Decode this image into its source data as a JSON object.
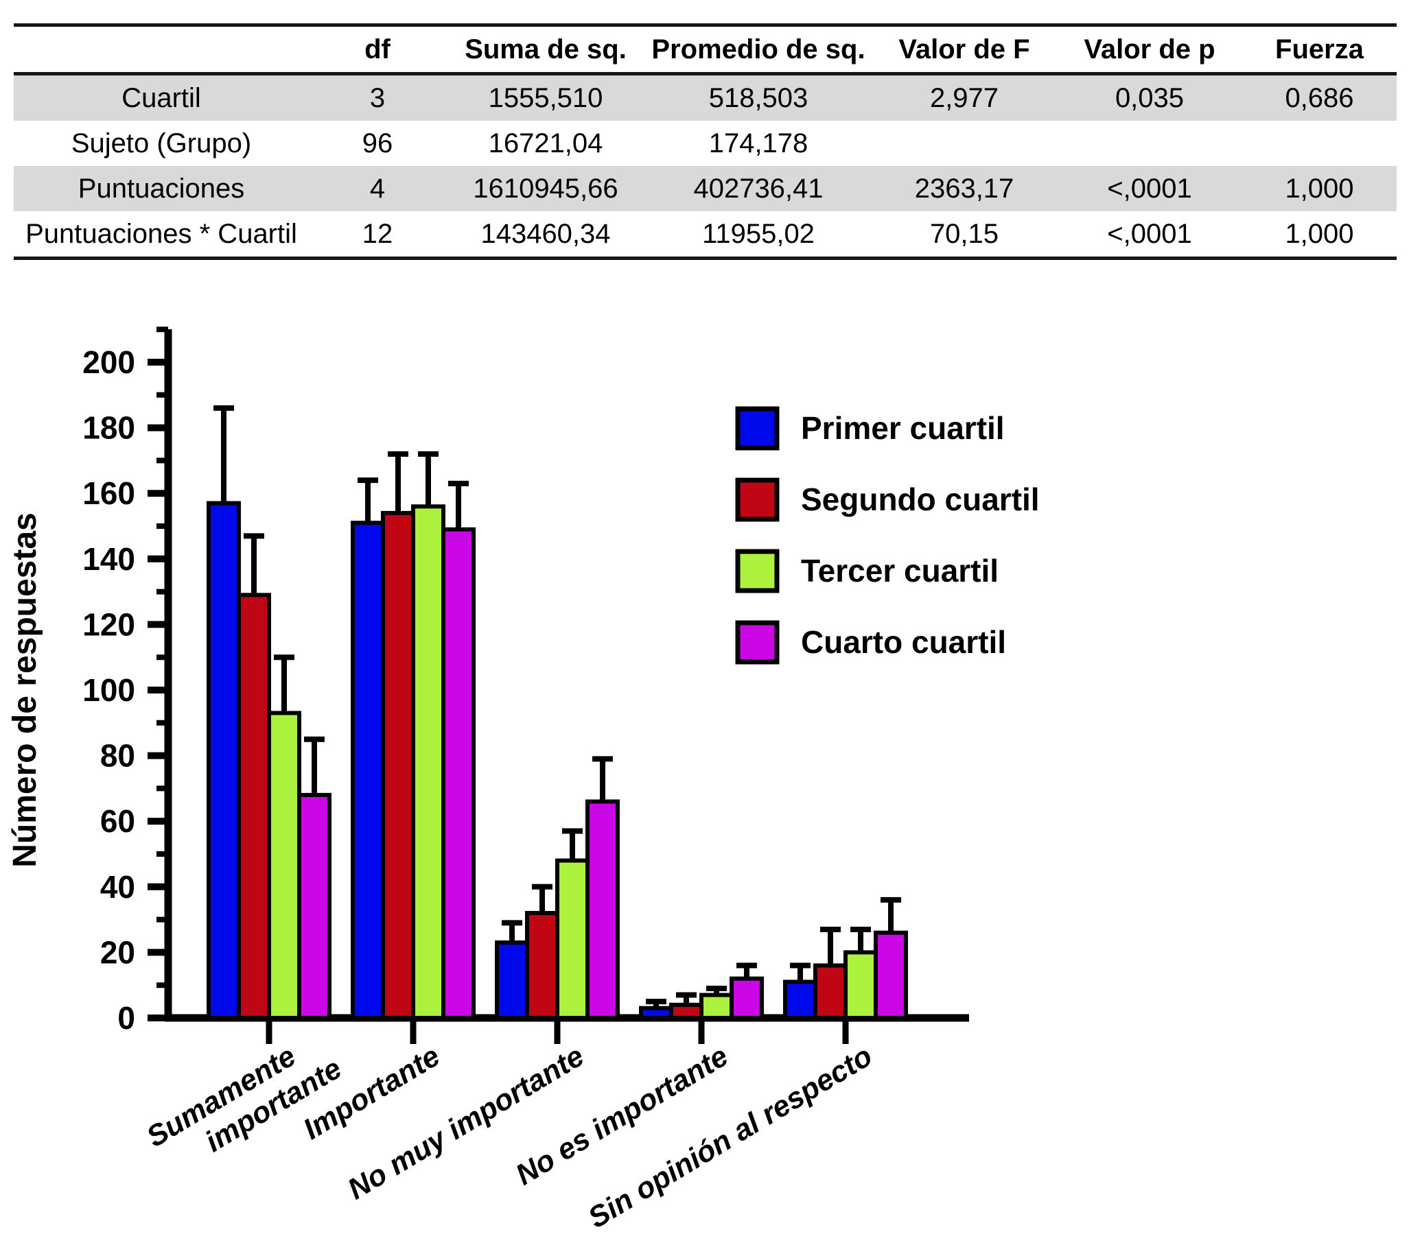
{
  "table": {
    "headers": [
      "",
      "df",
      "Suma de sq.",
      "Promedio de sq.",
      "Valor de F",
      "Valor de p",
      "Fuerza"
    ],
    "rows": [
      {
        "label": "Cuartil",
        "cells": [
          "3",
          "1555,510",
          "518,503",
          "2,977",
          "0,035",
          "0,686"
        ],
        "shaded": true
      },
      {
        "label": "Sujeto (Grupo)",
        "cells": [
          "96",
          "16721,04",
          "174,178",
          "",
          "",
          ""
        ],
        "shaded": false
      },
      {
        "label": "Puntuaciones",
        "cells": [
          "4",
          "1610945,66",
          "402736,41",
          "2363,17",
          "<,0001",
          "1,000"
        ],
        "shaded": true
      },
      {
        "label": "Puntuaciones * Cuartil",
        "cells": [
          "12",
          "143460,34",
          "11955,02",
          "70,15",
          "<,0001",
          "1,000"
        ],
        "shaded": false
      }
    ],
    "shade_color": "#d9d9d9"
  },
  "chart_data": {
    "type": "bar",
    "title": "",
    "xlabel": "",
    "ylabel": "Número de respuestas",
    "ylim": [
      0,
      200
    ],
    "ytick_step": 20,
    "yticks": [
      0,
      20,
      40,
      60,
      80,
      100,
      120,
      140,
      160,
      180,
      200
    ],
    "grid": false,
    "legend_position": "upper right",
    "categories": [
      "Sumamente\nimportante",
      "Importante",
      "No muy importante",
      "No es importante",
      "Sin opinión al respecto"
    ],
    "series": [
      {
        "name": "Primer cuartil",
        "color": "#0009ec",
        "values": [
          157,
          151,
          23,
          3,
          11
        ],
        "errors": [
          29,
          13,
          6,
          2,
          5
        ]
      },
      {
        "name": "Segundo cuartil",
        "color": "#c00514",
        "values": [
          129,
          154,
          32,
          4,
          16
        ],
        "errors": [
          18,
          18,
          8,
          3,
          11
        ]
      },
      {
        "name": "Tercer cuartil",
        "color": "#abf13e",
        "values": [
          93,
          156,
          48,
          7,
          20
        ],
        "errors": [
          17,
          16,
          9,
          2,
          7
        ]
      },
      {
        "name": "Cuarto cuartil",
        "color": "#cb07e6",
        "values": [
          68,
          149,
          66,
          12,
          26
        ],
        "errors": [
          17,
          14,
          13,
          4,
          10
        ]
      }
    ],
    "error_bar_color": "#000000",
    "bar_outline_color": "#000000",
    "axis_color": "#000000"
  }
}
